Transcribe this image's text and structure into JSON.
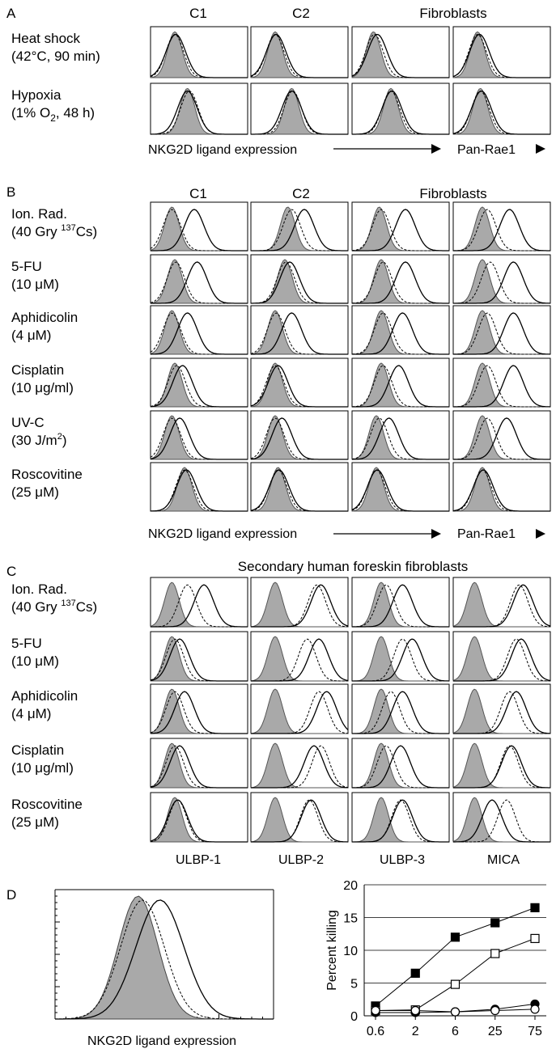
{
  "chart_data": [
    {
      "type": "histogram-grid",
      "panel": "A",
      "column_headers": [
        "C1",
        "C2",
        "Fibroblasts"
      ],
      "rows": [
        {
          "line1": "Heat shock",
          "line2": "(42°C, 90 min)",
          "sub": "",
          "tail": ""
        },
        {
          "line1": "Hypoxia",
          "line2": "(1% O",
          "sub": "2",
          "tail": ", 48 h)"
        }
      ],
      "x_label": "NKG2D ligand expression",
      "x_label_right": "Pan-Rae1",
      "peaks": [
        [
          [
            0.25,
            0.25,
            0.26
          ],
          [
            0.25,
            0.25,
            0.26
          ],
          [
            0.22,
            0.23,
            0.26
          ],
          [
            0.25,
            0.25,
            0.27
          ]
        ],
        [
          [
            0.38,
            0.4,
            0.38
          ],
          [
            0.42,
            0.43,
            0.42
          ],
          [
            0.4,
            0.4,
            0.41
          ],
          [
            0.28,
            0.28,
            0.29
          ]
        ]
      ]
    },
    {
      "type": "histogram-grid",
      "panel": "B",
      "column_headers": [
        "C1",
        "C2",
        "Fibroblasts"
      ],
      "rows": [
        {
          "line1": "Ion. Rad.",
          "line2": "(40 Gry ",
          "sup": "137",
          "tail": "Cs)"
        },
        {
          "line1": "5-FU",
          "line2": "(10 μM)",
          "sup": "",
          "tail": ""
        },
        {
          "line1": "Aphidicolin",
          "line2": "(4 μM)",
          "sup": "",
          "tail": ""
        },
        {
          "line1": "Cisplatin",
          "line2": "(10 μg/ml)",
          "sup": "",
          "tail": ""
        },
        {
          "line1": "UV-C",
          "line2": "(30 J/m",
          "sup": "2",
          "tail": ")"
        },
        {
          "line1": "Roscovitine",
          "line2": "(25 μM)",
          "sup": "",
          "tail": ""
        }
      ],
      "x_label": "NKG2D ligand expression",
      "x_label_right": "Pan-Rae1",
      "peaks": [
        [
          [
            0.22,
            0.22,
            0.45
          ],
          [
            0.38,
            0.42,
            0.55
          ],
          [
            0.28,
            0.3,
            0.55
          ],
          [
            0.3,
            0.35,
            0.58
          ]
        ],
        [
          [
            0.25,
            0.26,
            0.48
          ],
          [
            0.35,
            0.36,
            0.4
          ],
          [
            0.3,
            0.32,
            0.55
          ],
          [
            0.3,
            0.38,
            0.62
          ]
        ],
        [
          [
            0.22,
            0.22,
            0.38
          ],
          [
            0.25,
            0.26,
            0.42
          ],
          [
            0.3,
            0.32,
            0.52
          ],
          [
            0.3,
            0.35,
            0.62
          ]
        ],
        [
          [
            0.25,
            0.27,
            0.33
          ],
          [
            0.25,
            0.25,
            0.28
          ],
          [
            0.3,
            0.32,
            0.48
          ],
          [
            0.3,
            0.35,
            0.62
          ]
        ],
        [
          [
            0.22,
            0.22,
            0.3
          ],
          [
            0.25,
            0.25,
            0.32
          ],
          [
            0.25,
            0.28,
            0.38
          ],
          [
            0.3,
            0.35,
            0.55
          ]
        ],
        [
          [
            0.35,
            0.35,
            0.37
          ],
          [
            0.28,
            0.28,
            0.29
          ],
          [
            0.25,
            0.25,
            0.26
          ],
          [
            0.3,
            0.3,
            0.31
          ]
        ]
      ]
    },
    {
      "type": "histogram-grid",
      "panel": "C",
      "title": "Secondary  human foreskin fibroblasts",
      "rows": [
        {
          "line1": "Ion. Rad.",
          "line2": "(40 Gry ",
          "sup": "137",
          "tail": "Cs)"
        },
        {
          "line1": "5-FU",
          "line2": "(10 μM)",
          "sup": "",
          "tail": ""
        },
        {
          "line1": "Aphidicolin",
          "line2": "(4 μM)",
          "sup": "",
          "tail": ""
        },
        {
          "line1": "Cisplatin",
          "line2": "(10 μg/ml)",
          "sup": "",
          "tail": ""
        },
        {
          "line1": "Roscovitine",
          "line2": "(25 μM)",
          "sup": "",
          "tail": ""
        }
      ],
      "column_labels": [
        "ULBP-1",
        "ULBP-2",
        "ULBP-3",
        "MICA"
      ],
      "peaks": [
        [
          [
            0.22,
            0.38,
            0.55
          ],
          [
            0.25,
            0.68,
            0.72
          ],
          [
            0.3,
            0.35,
            0.52
          ],
          [
            0.22,
            0.68,
            0.72
          ]
        ],
        [
          [
            0.22,
            0.25,
            0.3
          ],
          [
            0.25,
            0.58,
            0.7
          ],
          [
            0.3,
            0.52,
            0.62
          ],
          [
            0.22,
            0.65,
            0.7
          ]
        ],
        [
          [
            0.22,
            0.25,
            0.35
          ],
          [
            0.25,
            0.7,
            0.78
          ],
          [
            0.3,
            0.4,
            0.52
          ],
          [
            0.22,
            0.58,
            0.65
          ]
        ],
        [
          [
            0.22,
            0.25,
            0.3
          ],
          [
            0.25,
            0.72,
            0.65
          ],
          [
            0.3,
            0.35,
            0.5
          ],
          [
            0.22,
            0.58,
            0.6
          ]
        ],
        [
          [
            0.25,
            0.28,
            0.28
          ],
          [
            0.25,
            0.6,
            0.62
          ],
          [
            0.3,
            0.5,
            0.52
          ],
          [
            0.22,
            0.55,
            0.4
          ]
        ]
      ]
    },
    {
      "type": "histogram",
      "panel": "D",
      "x_label": "NKG2D ligand expression",
      "peaks": [
        0.38,
        0.4,
        0.48
      ]
    },
    {
      "type": "line",
      "panel": "D",
      "ylabel": "Percent killing",
      "xlabel": "",
      "x_ticks": [
        "0.6",
        "2",
        "6",
        "25",
        "75"
      ],
      "ylim": [
        0,
        20
      ],
      "y_ticks": [
        0,
        5,
        10,
        15,
        20
      ],
      "grid": "horizontal",
      "series": [
        {
          "marker": "filled-square",
          "values": [
            1.5,
            6.5,
            12.0,
            14.2,
            16.5
          ]
        },
        {
          "marker": "open-square",
          "values": [
            0.8,
            0.9,
            4.8,
            9.5,
            11.8
          ]
        },
        {
          "marker": "filled-circle",
          "values": [
            0.5,
            0.5,
            0.6,
            1.0,
            1.8
          ]
        },
        {
          "marker": "open-circle",
          "values": [
            0.8,
            0.8,
            0.6,
            0.8,
            1.0
          ]
        }
      ]
    }
  ]
}
